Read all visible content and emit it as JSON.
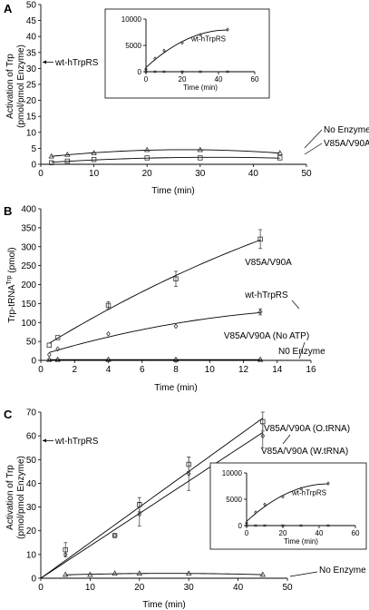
{
  "panels": [
    "A",
    "B",
    "C"
  ],
  "chart_data": [
    {
      "panel": "A",
      "type": "scatter",
      "xlabel": "Time (min)",
      "ylabel_lines": [
        "Activation of Trp",
        "(pmol/pmol Enzyme)"
      ],
      "xlim": [
        0,
        50
      ],
      "ylim": [
        0,
        50
      ],
      "xticks": [
        0,
        10,
        20,
        30,
        40,
        50
      ],
      "yticks": [
        0,
        5,
        10,
        15,
        20,
        25,
        30,
        35,
        40,
        45,
        50
      ],
      "offscale_label": "wt-hTrpRS",
      "offscale_y": 32,
      "series": [
        {
          "name": "No Enzyme",
          "marker": "triangle",
          "x": [
            2,
            5,
            10,
            20,
            30,
            45
          ],
          "y": [
            2.5,
            3,
            3.5,
            4.5,
            4.5,
            3.5
          ],
          "fit": "quad"
        },
        {
          "name": "V85A/V90A",
          "marker": "square",
          "x": [
            2,
            5,
            10,
            20,
            30,
            45
          ],
          "y": [
            0.5,
            1,
            1.5,
            2,
            2,
            2
          ],
          "fit": "quad"
        }
      ],
      "inset": {
        "xlabel": "Time (min)",
        "xlim": [
          0,
          60
        ],
        "ylim": [
          0,
          10000
        ],
        "xticks": [
          0,
          20,
          40,
          60
        ],
        "yticks": [
          0,
          5000,
          10000
        ],
        "series": [
          {
            "name": "wt-hTrpRS",
            "marker": "diamond",
            "x": [
              0,
              5,
              10,
              20,
              30,
              45
            ],
            "y": [
              500,
              2500,
              4000,
              5500,
              7000,
              8000
            ],
            "fit": "quad"
          },
          {
            "name": "",
            "marker": "cross",
            "x": [
              0,
              5,
              10,
              20,
              30,
              45
            ],
            "y": [
              0,
              0,
              0,
              0,
              0,
              0
            ],
            "fit": "line"
          }
        ]
      }
    },
    {
      "panel": "B",
      "type": "scatter",
      "xlabel": "Time (min)",
      "ylabel": "Trp-tRNA",
      "ylabel_sup": "Trp",
      "ylabel_tail": " (pmol)",
      "xlim": [
        0,
        16
      ],
      "ylim": [
        0,
        400
      ],
      "xticks": [
        0,
        2,
        4,
        6,
        8,
        10,
        12,
        14,
        16
      ],
      "yticks": [
        0,
        50,
        100,
        150,
        200,
        250,
        300,
        350,
        400
      ],
      "series": [
        {
          "name": "V85A/V90A",
          "marker": "square",
          "x": [
            0.5,
            1,
            4,
            8,
            13
          ],
          "y": [
            40,
            60,
            145,
            215,
            320
          ],
          "err": [
            0,
            0,
            10,
            20,
            25
          ],
          "fit": "quad"
        },
        {
          "name": "wt-hTrpRS",
          "marker": "diamond",
          "x": [
            0.5,
            1,
            4,
            8,
            13
          ],
          "y": [
            15,
            30,
            70,
            90,
            128
          ],
          "err": [
            0,
            0,
            0,
            0,
            8
          ],
          "fit": "quad"
        },
        {
          "name": "V85A/V90A (No ATP)",
          "marker": "triangle",
          "x": [
            0.5,
            1,
            4,
            8,
            13
          ],
          "y": [
            2,
            2,
            2,
            2,
            2
          ],
          "fit": "line"
        },
        {
          "name": "N0 Enzyme",
          "marker": "cross",
          "x": [
            0.5,
            1,
            4,
            8,
            13
          ],
          "y": [
            0,
            0,
            0,
            0,
            0
          ],
          "fit": "line"
        }
      ]
    },
    {
      "panel": "C",
      "type": "scatter",
      "xlabel": "Time (min)",
      "ylabel_lines": [
        "Activation of Trp",
        "(pmol/pmol Enzyme)"
      ],
      "xlim": [
        0,
        50
      ],
      "ylim": [
        0,
        70
      ],
      "xticks": [
        0,
        10,
        20,
        30,
        40,
        50
      ],
      "yticks": [
        0,
        10,
        20,
        30,
        40,
        50,
        60,
        70
      ],
      "offscale_label": "wt-hTrpRS",
      "offscale_y": 58,
      "series": [
        {
          "name": "V85A/V90A (O.tRNA)",
          "marker": "square",
          "x": [
            5,
            15,
            20,
            30,
            45
          ],
          "y": [
            12,
            18,
            31,
            48,
            66
          ],
          "err": [
            3,
            0,
            3,
            3,
            4
          ],
          "fit": "lin0"
        },
        {
          "name": "V85A/V90A (W.tRNA)",
          "marker": "diamond",
          "x": [
            5,
            15,
            20,
            30,
            45
          ],
          "y": [
            10,
            18,
            27,
            44,
            60
          ],
          "err": [
            0,
            0,
            5,
            7,
            5
          ],
          "fit": "lin0"
        },
        {
          "name": "No Enzyme",
          "marker": "triangle",
          "x": [
            5,
            10,
            15,
            20,
            30,
            45
          ],
          "y": [
            1.5,
            1.5,
            2,
            2,
            2,
            1.5
          ],
          "fit": "quad"
        }
      ],
      "inset": {
        "xlabel": "Time (min)",
        "xlim": [
          0,
          60
        ],
        "ylim": [
          0,
          10000
        ],
        "xticks": [
          0,
          20,
          40,
          60
        ],
        "yticks": [
          0,
          5000,
          10000
        ],
        "series": [
          {
            "name": "wt-hTrpRS",
            "marker": "diamond",
            "x": [
              0,
              5,
              10,
              20,
              30,
              45
            ],
            "y": [
              500,
              2500,
              4000,
              5500,
              7000,
              8000
            ],
            "fit": "quad"
          },
          {
            "name": "",
            "marker": "cross",
            "x": [
              0,
              5,
              10,
              20,
              30,
              45
            ],
            "y": [
              0,
              0,
              0,
              0,
              0,
              0
            ],
            "fit": "line"
          }
        ]
      }
    }
  ]
}
